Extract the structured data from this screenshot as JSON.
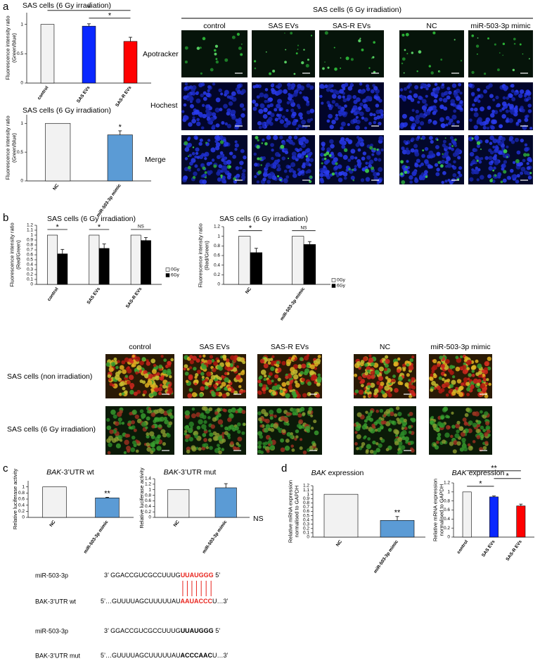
{
  "panels": [
    "a",
    "b",
    "c",
    "d"
  ],
  "panel_a_images": {
    "title": "SAS cells (6 Gy irradiation)",
    "columns": [
      "control",
      "SAS EVs",
      "SAS-R EVs",
      "NC",
      "miR-503-3p mimic"
    ],
    "rows": [
      "Apotracker",
      "Hochest",
      "Merge"
    ]
  },
  "panel_b_images": {
    "columns": [
      "control",
      "SAS EVs",
      "SAS-R EVs",
      "NC",
      "miR-503-3p mimic"
    ],
    "rows": [
      "SAS cells (non irradiation)",
      "SAS cells (6 Gy irradiation)"
    ]
  },
  "sequences": [
    {
      "name": "miR-503-3p",
      "parts": [
        "3’ GGACCGUCGCCUUUG",
        "UUAUGGG",
        " 5’"
      ]
    },
    {
      "name": "BAK-3’UTR wt",
      "parts": [
        "5’…GUUUUAGCUUUUUAU",
        "AAUACCC",
        "U…3’"
      ]
    },
    {
      "name": "miR-503-3p",
      "parts": [
        "3’ GGACCGUCGCCUUUG",
        "UUAUGGG",
        " 5’"
      ]
    },
    {
      "name": "BAK-3’UTR mut",
      "parts": [
        "5’…GUUUUAGCUUUUUAU",
        "ACCCAAC",
        "U…3’"
      ]
    }
  ],
  "chart_data": [
    {
      "type": "bar",
      "title": "SAS cells (6 Gy irradiation)",
      "ylabel": [
        "Fluorescence intensity ratio",
        "(Green/blue)"
      ],
      "categories": [
        "control",
        "SAS EVs",
        "SAS-R EVs"
      ],
      "values": [
        1,
        0.97,
        0.71
      ],
      "errors": [
        null,
        0.04,
        0.07
      ],
      "colors": [
        "#f2f2f2",
        "#0a28ff",
        "#ff0000"
      ],
      "ylim": [
        0,
        1.2
      ],
      "yticks": [
        0,
        0.5,
        1
      ],
      "brackets": [
        {
          "text": "*",
          "from": 0,
          "to": 2
        },
        {
          "text": "*",
          "from": 1,
          "to": 2
        }
      ]
    },
    {
      "type": "bar",
      "title": "SAS cells (6 Gy irradiation)",
      "ylabel": [
        "Fluorescence intensity ratio",
        "(Green/blue)"
      ],
      "categories": [
        "NC",
        "miR-503-3p mimic"
      ],
      "values": [
        1,
        0.8
      ],
      "errors": [
        null,
        0.07
      ],
      "colors": [
        "#f2f2f2",
        "#5b9bd5"
      ],
      "ylim": [
        0,
        1.15
      ],
      "yticks": [
        0,
        0.5,
        1
      ],
      "stars": [
        {
          "text": "*",
          "at": 1
        }
      ]
    },
    {
      "type": "bar",
      "title": "SAS cells (6 Gy irradiation)",
      "ylabel": [
        "Fluorescence intensity ratio",
        "(Red/Green)"
      ],
      "categories": [
        "control",
        "SAS EVs",
        "SAS-R EVs"
      ],
      "series": [
        {
          "name": "0Gy",
          "color": "#f2f2f2",
          "values": [
            1,
            1,
            1
          ]
        },
        {
          "name": "6Gy",
          "color": "#000000",
          "values": [
            0.62,
            0.73,
            0.89
          ],
          "errors": [
            0.09,
            0.09,
            0.06
          ]
        }
      ],
      "ylim": [
        0,
        1.2
      ],
      "yticks": [
        0,
        0.1,
        0.2,
        0.3,
        0.4,
        0.5,
        0.6,
        0.7,
        0.8,
        0.9,
        1,
        1.1,
        1.2
      ],
      "brackets": [
        {
          "text": "*",
          "from": 0,
          "to": 0
        },
        {
          "text": "*",
          "from": 1,
          "to": 1
        },
        {
          "text": "NS",
          "from": 2,
          "to": 2
        }
      ]
    },
    {
      "type": "bar",
      "title": "SAS cells (6 Gy irradiation)",
      "ylabel": [
        "Fluorescence intensity ratio",
        "(Red/Green)"
      ],
      "categories": [
        "NC",
        "miR-503-3p mimic"
      ],
      "series": [
        {
          "name": "0Gy",
          "color": "#f2f2f2",
          "values": [
            1,
            1
          ]
        },
        {
          "name": "6Gy",
          "color": "#000000",
          "values": [
            0.66,
            0.83
          ],
          "errors": [
            0.09,
            0.06
          ]
        }
      ],
      "ylim": [
        0,
        1.2
      ],
      "yticks": [
        0,
        0.2,
        0.4,
        0.6,
        0.8,
        1,
        1.2
      ],
      "brackets": [
        {
          "text": "*",
          "from": 0,
          "to": 0
        },
        {
          "text": "NS",
          "from": 1,
          "to": 1
        }
      ]
    },
    {
      "type": "bar",
      "title": [
        "BAK",
        "-3’UTR wt"
      ],
      "ylabel": [
        "Relative luciferase activity"
      ],
      "categories": [
        "NC",
        "miR-503-3p mimic"
      ],
      "values": [
        1,
        0.64
      ],
      "errors": [
        null,
        0.02
      ],
      "colors": [
        "#f2f2f2",
        "#5b9bd5"
      ],
      "ylim": [
        0,
        1.2
      ],
      "yticks": [
        0,
        0.2,
        0.4,
        0.6,
        0.8,
        1
      ],
      "stars": [
        {
          "text": "**",
          "at": 1
        }
      ]
    },
    {
      "type": "bar",
      "title": [
        "BAK",
        "-3’UTR mut"
      ],
      "ylabel": [
        "Relative luciferase activity"
      ],
      "categories": [
        "NC",
        "miR-503-3p mimic"
      ],
      "values": [
        1,
        1.07
      ],
      "errors": [
        null,
        0.15
      ],
      "colors": [
        "#f2f2f2",
        "#5b9bd5"
      ],
      "ylim": [
        0,
        1.4
      ],
      "yticks": [
        0,
        0.2,
        0.4,
        0.6,
        0.8,
        1,
        1.2,
        1.4
      ],
      "note": "NS"
    },
    {
      "type": "bar",
      "title": [
        "BAK",
        " expression"
      ],
      "ylabel": [
        "Relative mRNA expression",
        "normalised to GAPDH"
      ],
      "categories": [
        "NC",
        "miR-503-3p mimic"
      ],
      "values": [
        1,
        0.39
      ],
      "errors": [
        null,
        0.09
      ],
      "colors": [
        "#f2f2f2",
        "#5b9bd5"
      ],
      "ylim": [
        0,
        1.2
      ],
      "yticks": [
        0,
        0.1,
        0.2,
        0.3,
        0.4,
        0.5,
        0.6,
        0.7,
        0.8,
        0.9,
        1,
        1.1,
        1.2
      ],
      "stars": [
        {
          "text": "**",
          "at": 1
        }
      ]
    },
    {
      "type": "bar",
      "title": [
        "BAK",
        " expression"
      ],
      "ylabel": [
        "Relative mRNA expression",
        "normalised to GAPDH"
      ],
      "categories": [
        "control",
        "SAS EVs",
        "SAS-R EVs"
      ],
      "values": [
        1,
        0.89,
        0.69
      ],
      "errors": [
        null,
        0.02,
        0.04
      ],
      "colors": [
        "#f2f2f2",
        "#0a28ff",
        "#ff0000"
      ],
      "ylim": [
        0,
        1.2
      ],
      "yticks": [
        0,
        0.2,
        0.4,
        0.6,
        0.8,
        1,
        1.2
      ],
      "brackets": [
        {
          "text": "*",
          "from": 0,
          "to": 1
        },
        {
          "text": "**",
          "from": 0,
          "to": 2
        },
        {
          "text": "*",
          "from": 1,
          "to": 2
        }
      ]
    }
  ]
}
